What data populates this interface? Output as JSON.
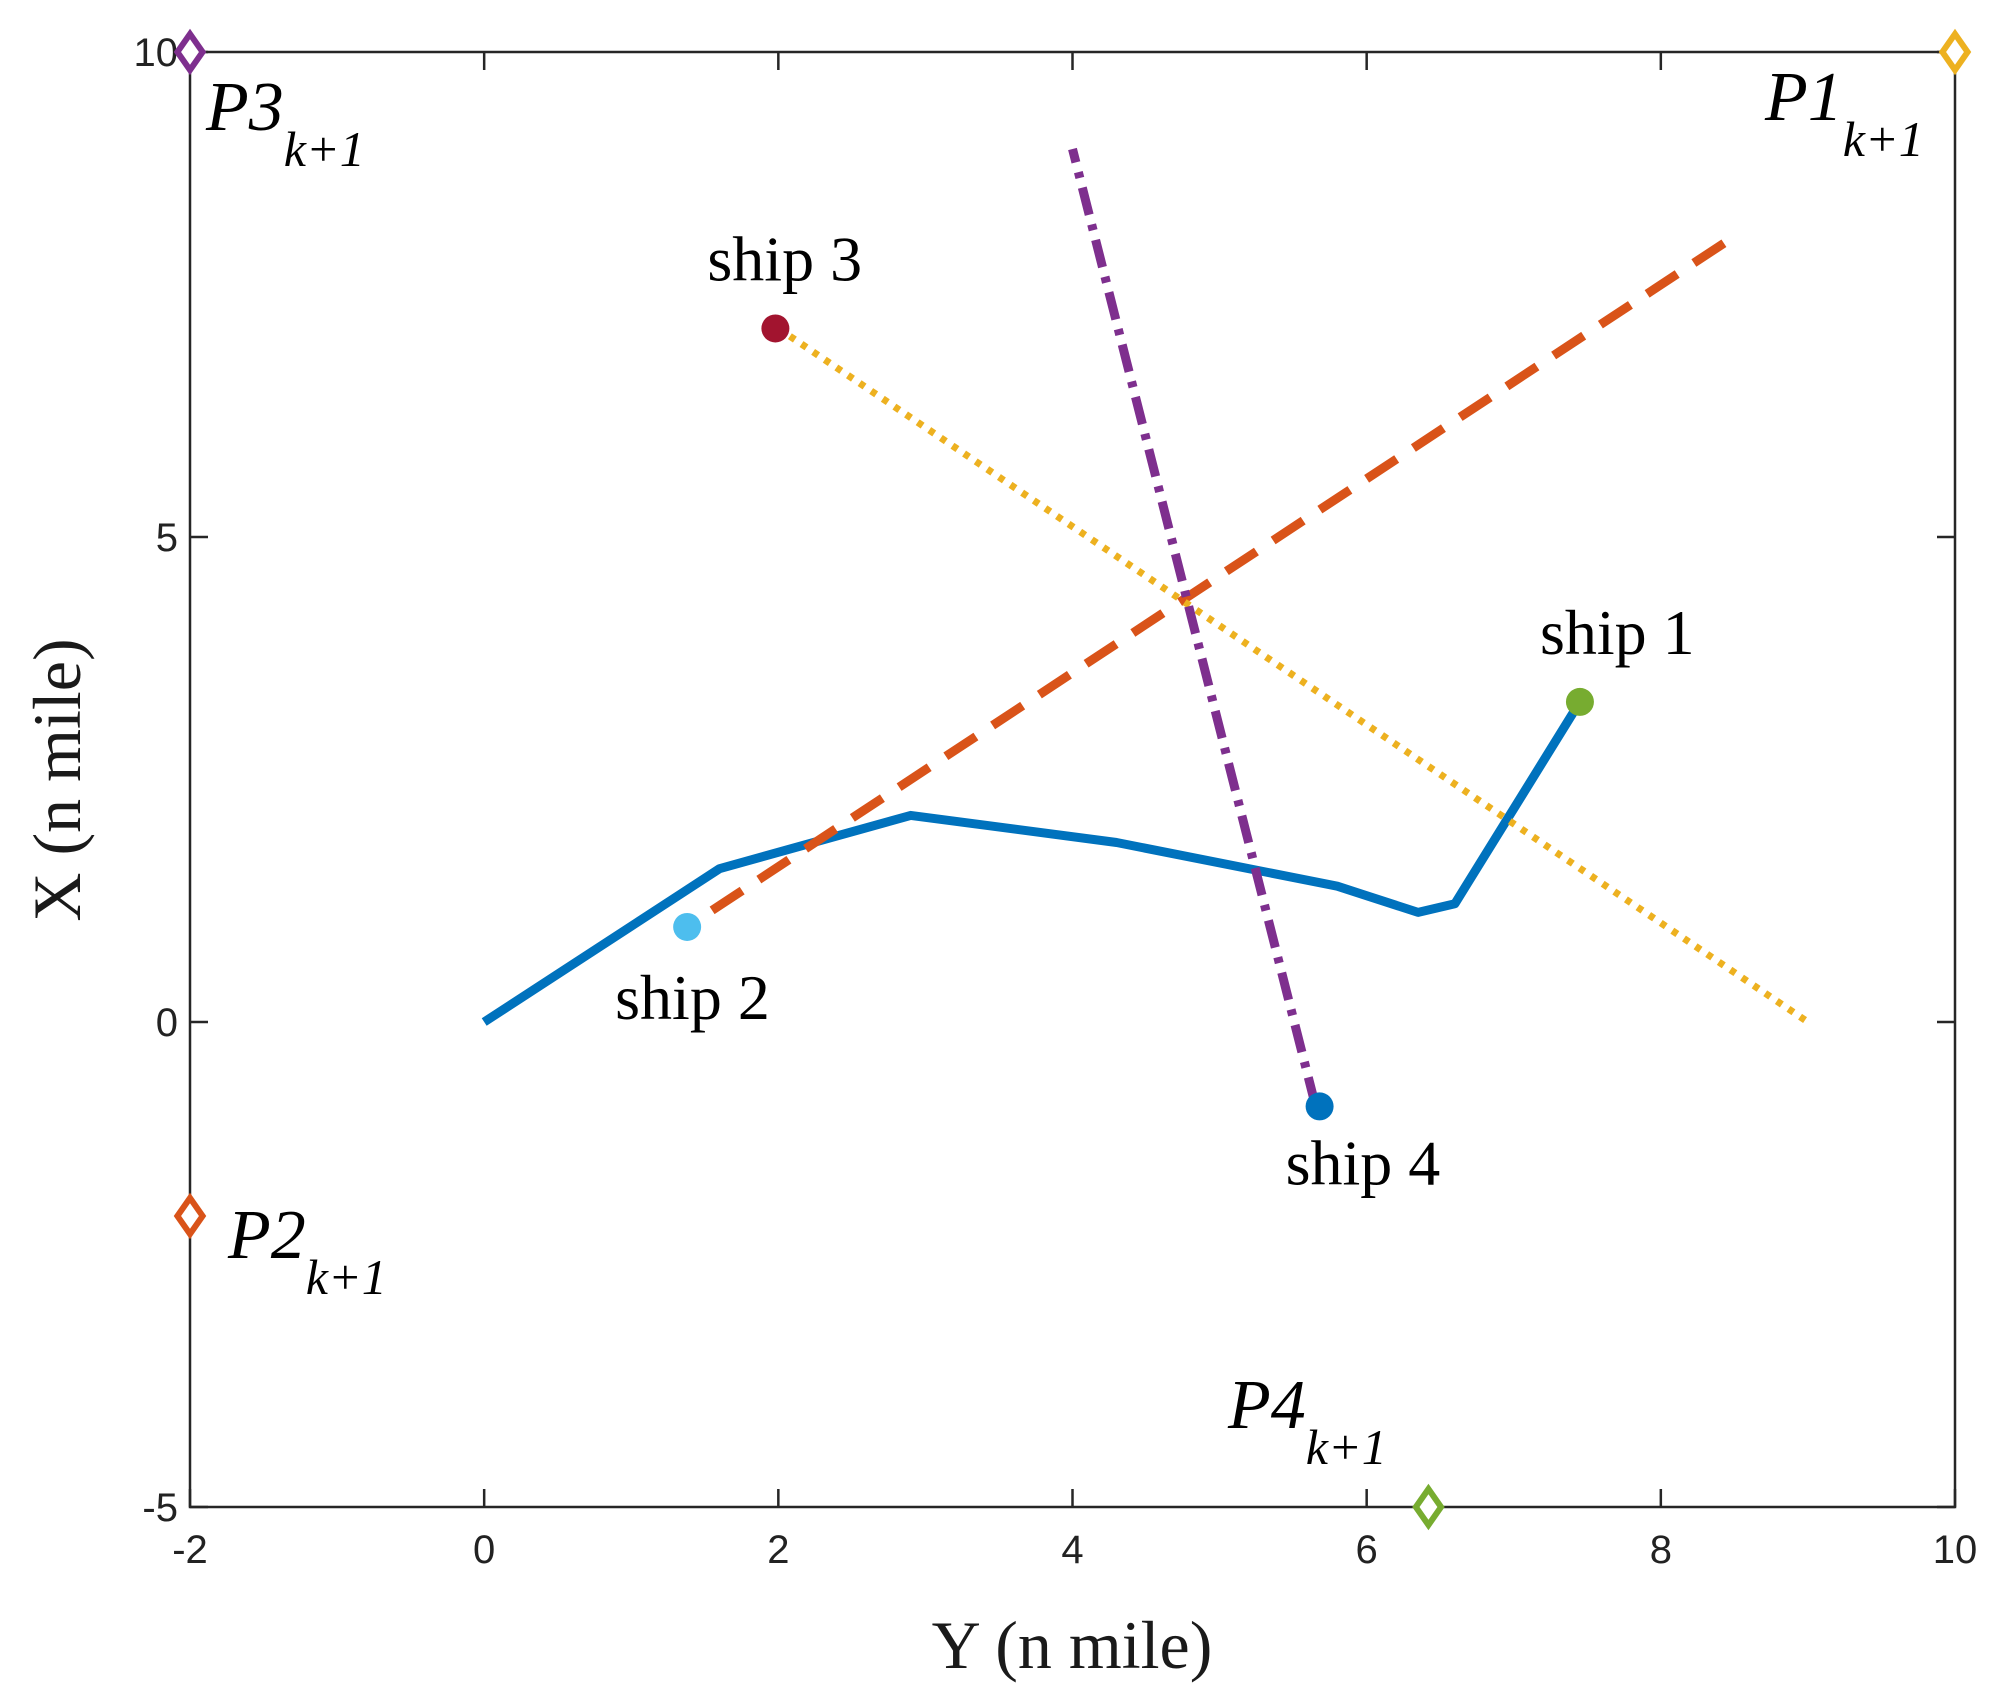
{
  "chart_data": {
    "type": "line",
    "title": "",
    "xlabel": "Y (n mile)",
    "ylabel": "X (n mile)",
    "xlim": [
      -2,
      10
    ],
    "ylim": [
      -5,
      10
    ],
    "xticks": [
      -2,
      0,
      2,
      4,
      6,
      8,
      10
    ],
    "yticks": [
      -5,
      0,
      5,
      10
    ],
    "grid": false,
    "series": [
      {
        "key": "own-ship-path",
        "color": "#0072BD",
        "style": "solid",
        "points": [
          [
            0,
            0
          ],
          [
            1.6,
            1.58
          ],
          [
            2.9,
            2.13
          ],
          [
            4.3,
            1.85
          ],
          [
            5.8,
            1.4
          ],
          [
            6.35,
            1.13
          ],
          [
            6.6,
            1.22
          ],
          [
            7.45,
            3.3
          ]
        ]
      },
      {
        "key": "ship2-track",
        "color": "#D95319",
        "style": "dashed",
        "points": [
          [
            1.55,
            1.15
          ],
          [
            8.5,
            8.1
          ]
        ]
      },
      {
        "key": "ship3-track",
        "color": "#EDB120",
        "style": "dotted",
        "points": [
          [
            2.0,
            7.15
          ],
          [
            9.0,
            0.0
          ]
        ]
      },
      {
        "key": "ship4-track",
        "color": "#7E2F8E",
        "style": "dashdot",
        "points": [
          [
            5.65,
            -0.85
          ],
          [
            4.0,
            9.0
          ]
        ]
      }
    ],
    "ships": [
      {
        "label": "ship 1",
        "x": 7.45,
        "y": 3.3,
        "color": "#77AC30"
      },
      {
        "label": "ship 2",
        "x": 1.38,
        "y": 0.98,
        "color": "#4DBEEE"
      },
      {
        "label": "ship 3",
        "x": 1.98,
        "y": 7.15,
        "color": "#A2142F"
      },
      {
        "label": "ship 4",
        "x": 5.68,
        "y": -0.87,
        "color": "#0072BD"
      }
    ],
    "targets": [
      {
        "label": "P1",
        "sub": "k+1",
        "x": 10,
        "y": 10,
        "color": "#EDB120"
      },
      {
        "label": "P2",
        "sub": "k+1",
        "x": -2,
        "y": -2,
        "color": "#D95319"
      },
      {
        "label": "P3",
        "sub": "k+1",
        "x": -2,
        "y": 10,
        "color": "#7E2F8E"
      },
      {
        "label": "P4",
        "sub": "k+1",
        "x": 6.42,
        "y": -5,
        "color": "#77AC30"
      }
    ]
  }
}
